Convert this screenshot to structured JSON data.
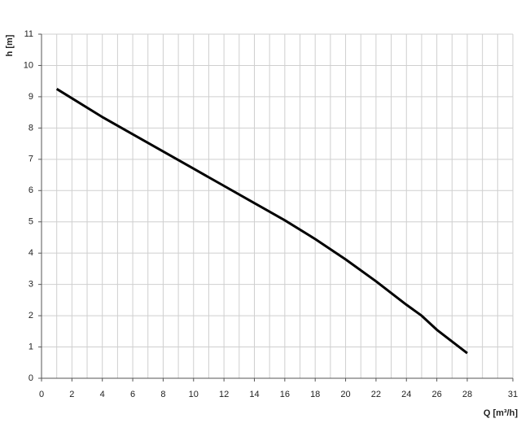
{
  "chart_data": {
    "type": "line",
    "x_label": "Q [m³/h]",
    "y_label": "h [m]",
    "x": [
      1,
      2,
      4,
      6,
      8,
      10,
      12,
      14,
      16,
      18,
      20,
      22,
      24,
      25,
      26,
      28
    ],
    "series": [
      {
        "color": "#000000",
        "values": [
          9.25,
          8.95,
          8.35,
          7.8,
          7.25,
          6.7,
          6.15,
          5.6,
          5.05,
          4.45,
          3.8,
          3.1,
          2.35,
          2.0,
          1.55,
          0.8
        ]
      }
    ],
    "xlim": [
      0,
      31
    ],
    "ylim": [
      0,
      11
    ],
    "xticks": [
      0,
      2,
      4,
      6,
      8,
      10,
      12,
      14,
      16,
      18,
      20,
      22,
      24,
      26,
      28,
      31
    ],
    "xminor": [
      1,
      3,
      5,
      7,
      9,
      11,
      13,
      15,
      17,
      19,
      21,
      23,
      25,
      27,
      29,
      30
    ],
    "yticks": [
      0,
      1,
      2,
      3,
      4,
      5,
      6,
      7,
      8,
      9,
      10,
      11
    ],
    "grid": true
  }
}
